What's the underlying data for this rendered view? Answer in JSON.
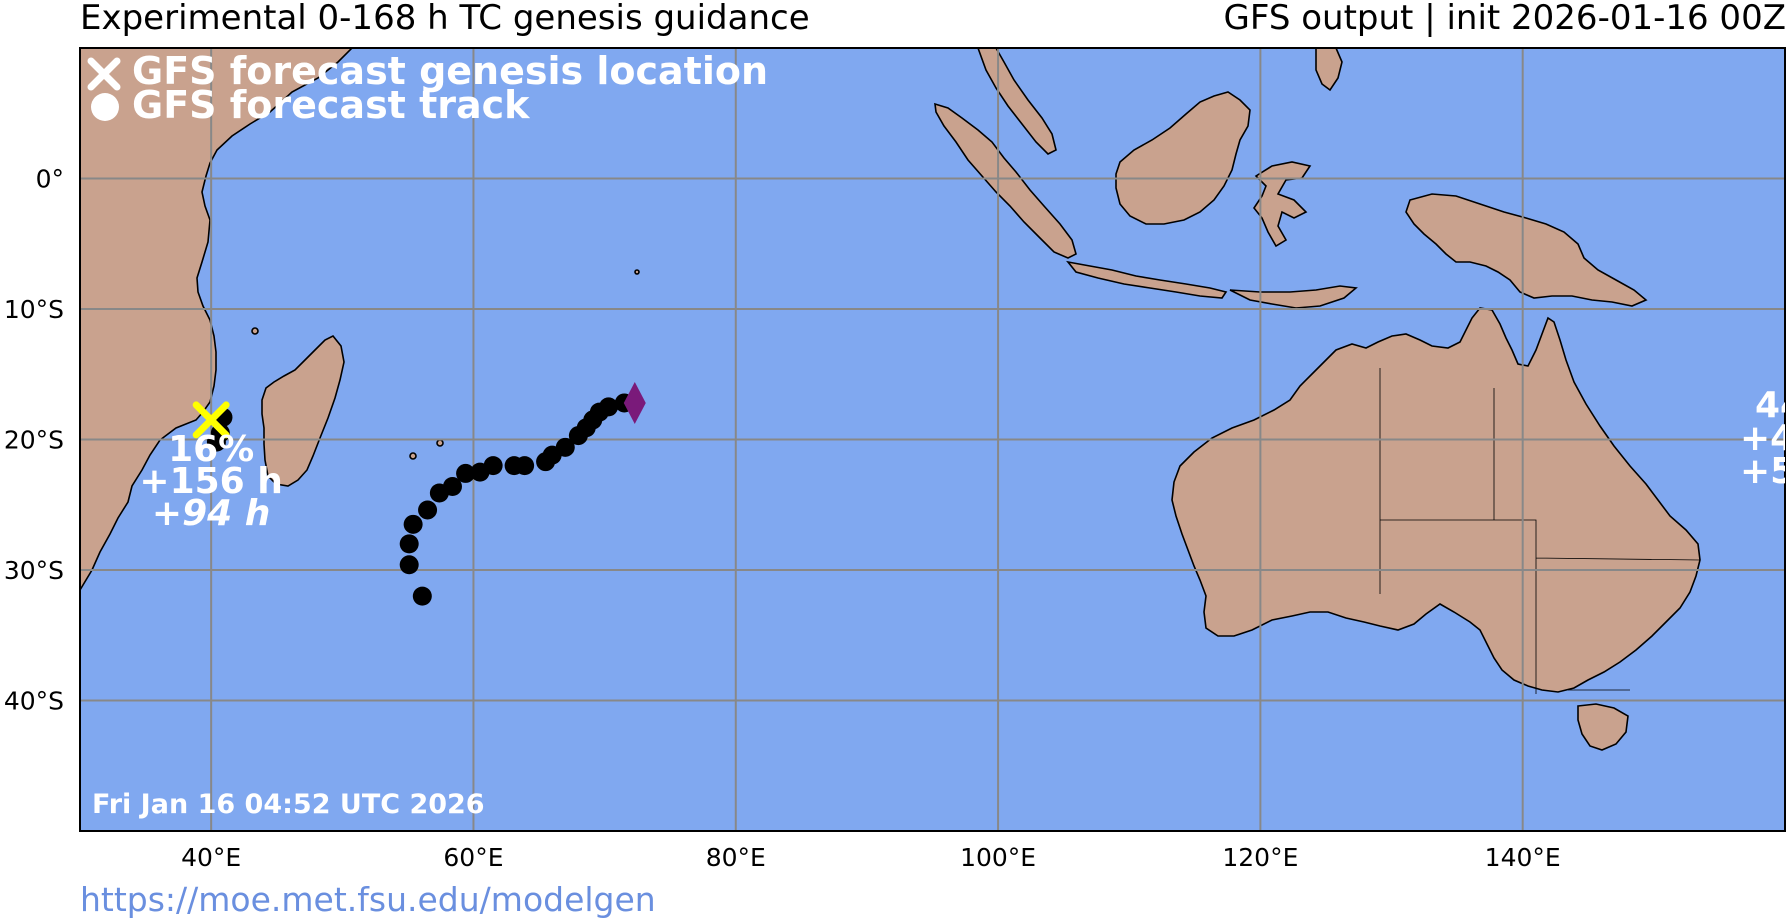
{
  "header": {
    "title_left": "Experimental 0-168 h TC genesis guidance",
    "title_right": "GFS output | init 2026-01-16 00Z"
  },
  "map": {
    "ocean_color": "#80a8f0",
    "land_color": "#c9a28e",
    "grid_color": "#888888",
    "lat_ticks": [
      {
        "lat": 0,
        "label": "0°"
      },
      {
        "lat": -10,
        "label": "10°S"
      },
      {
        "lat": -20,
        "label": "20°S"
      },
      {
        "lat": -30,
        "label": "30°S"
      },
      {
        "lat": -40,
        "label": "40°S"
      }
    ],
    "lon_ticks": [
      {
        "lon": 40,
        "label": "40°E"
      },
      {
        "lon": 60,
        "label": "60°E"
      },
      {
        "lon": 80,
        "label": "80°E"
      },
      {
        "lon": 100,
        "label": "100°E"
      },
      {
        "lon": 120,
        "label": "120°E"
      },
      {
        "lon": 140,
        "label": "140°E"
      }
    ],
    "lon_range": [
      30,
      160
    ],
    "lat_range": [
      -50,
      10
    ]
  },
  "legend": {
    "genesis_marker_label": "GFS forecast genesis location",
    "track_marker_label": "GFS forecast track"
  },
  "storms": [
    {
      "genesis": {
        "lon": 40,
        "lat": -18.5
      },
      "genesis_color": "#ffff00",
      "probability": "16%",
      "lead_time": "+156 h",
      "duration": "+94 h",
      "track": [
        {
          "lon": 40.9,
          "lat": -18.3
        },
        {
          "lon": 40.7,
          "lat": -19.5
        },
        {
          "lon": 40.4,
          "lat": -20.2
        }
      ]
    },
    {
      "end_marker": {
        "lon": 72.3,
        "lat": -17.2,
        "color": "#7a1a7a"
      },
      "track": [
        {
          "lon": 71.5,
          "lat": -17.2
        },
        {
          "lon": 70.3,
          "lat": -17.5
        },
        {
          "lon": 69.6,
          "lat": -17.9
        },
        {
          "lon": 69.1,
          "lat": -18.5
        },
        {
          "lon": 68.6,
          "lat": -19.1
        },
        {
          "lon": 68.0,
          "lat": -19.7
        },
        {
          "lon": 67.0,
          "lat": -20.6
        },
        {
          "lon": 66.0,
          "lat": -21.2
        },
        {
          "lon": 65.5,
          "lat": -21.7
        },
        {
          "lon": 63.9,
          "lat": -22.0
        },
        {
          "lon": 63.1,
          "lat": -22.0
        },
        {
          "lon": 61.5,
          "lat": -22.0
        },
        {
          "lon": 60.5,
          "lat": -22.5
        },
        {
          "lon": 59.4,
          "lat": -22.6
        },
        {
          "lon": 58.4,
          "lat": -23.6
        },
        {
          "lon": 57.4,
          "lat": -24.1
        },
        {
          "lon": 56.5,
          "lat": -25.4
        },
        {
          "lon": 55.4,
          "lat": -26.5
        },
        {
          "lon": 55.1,
          "lat": -28.0
        },
        {
          "lon": 55.1,
          "lat": -29.6
        },
        {
          "lon": 56.1,
          "lat": -32.0
        }
      ]
    },
    {
      "partial": true,
      "probability": "44",
      "lead_time": "+4",
      "duration": "+5"
    }
  ],
  "timestamp": "Fri Jan 16 04:52 UTC 2026",
  "footer": {
    "url": "https://moe.met.fsu.edu/modelgen"
  }
}
